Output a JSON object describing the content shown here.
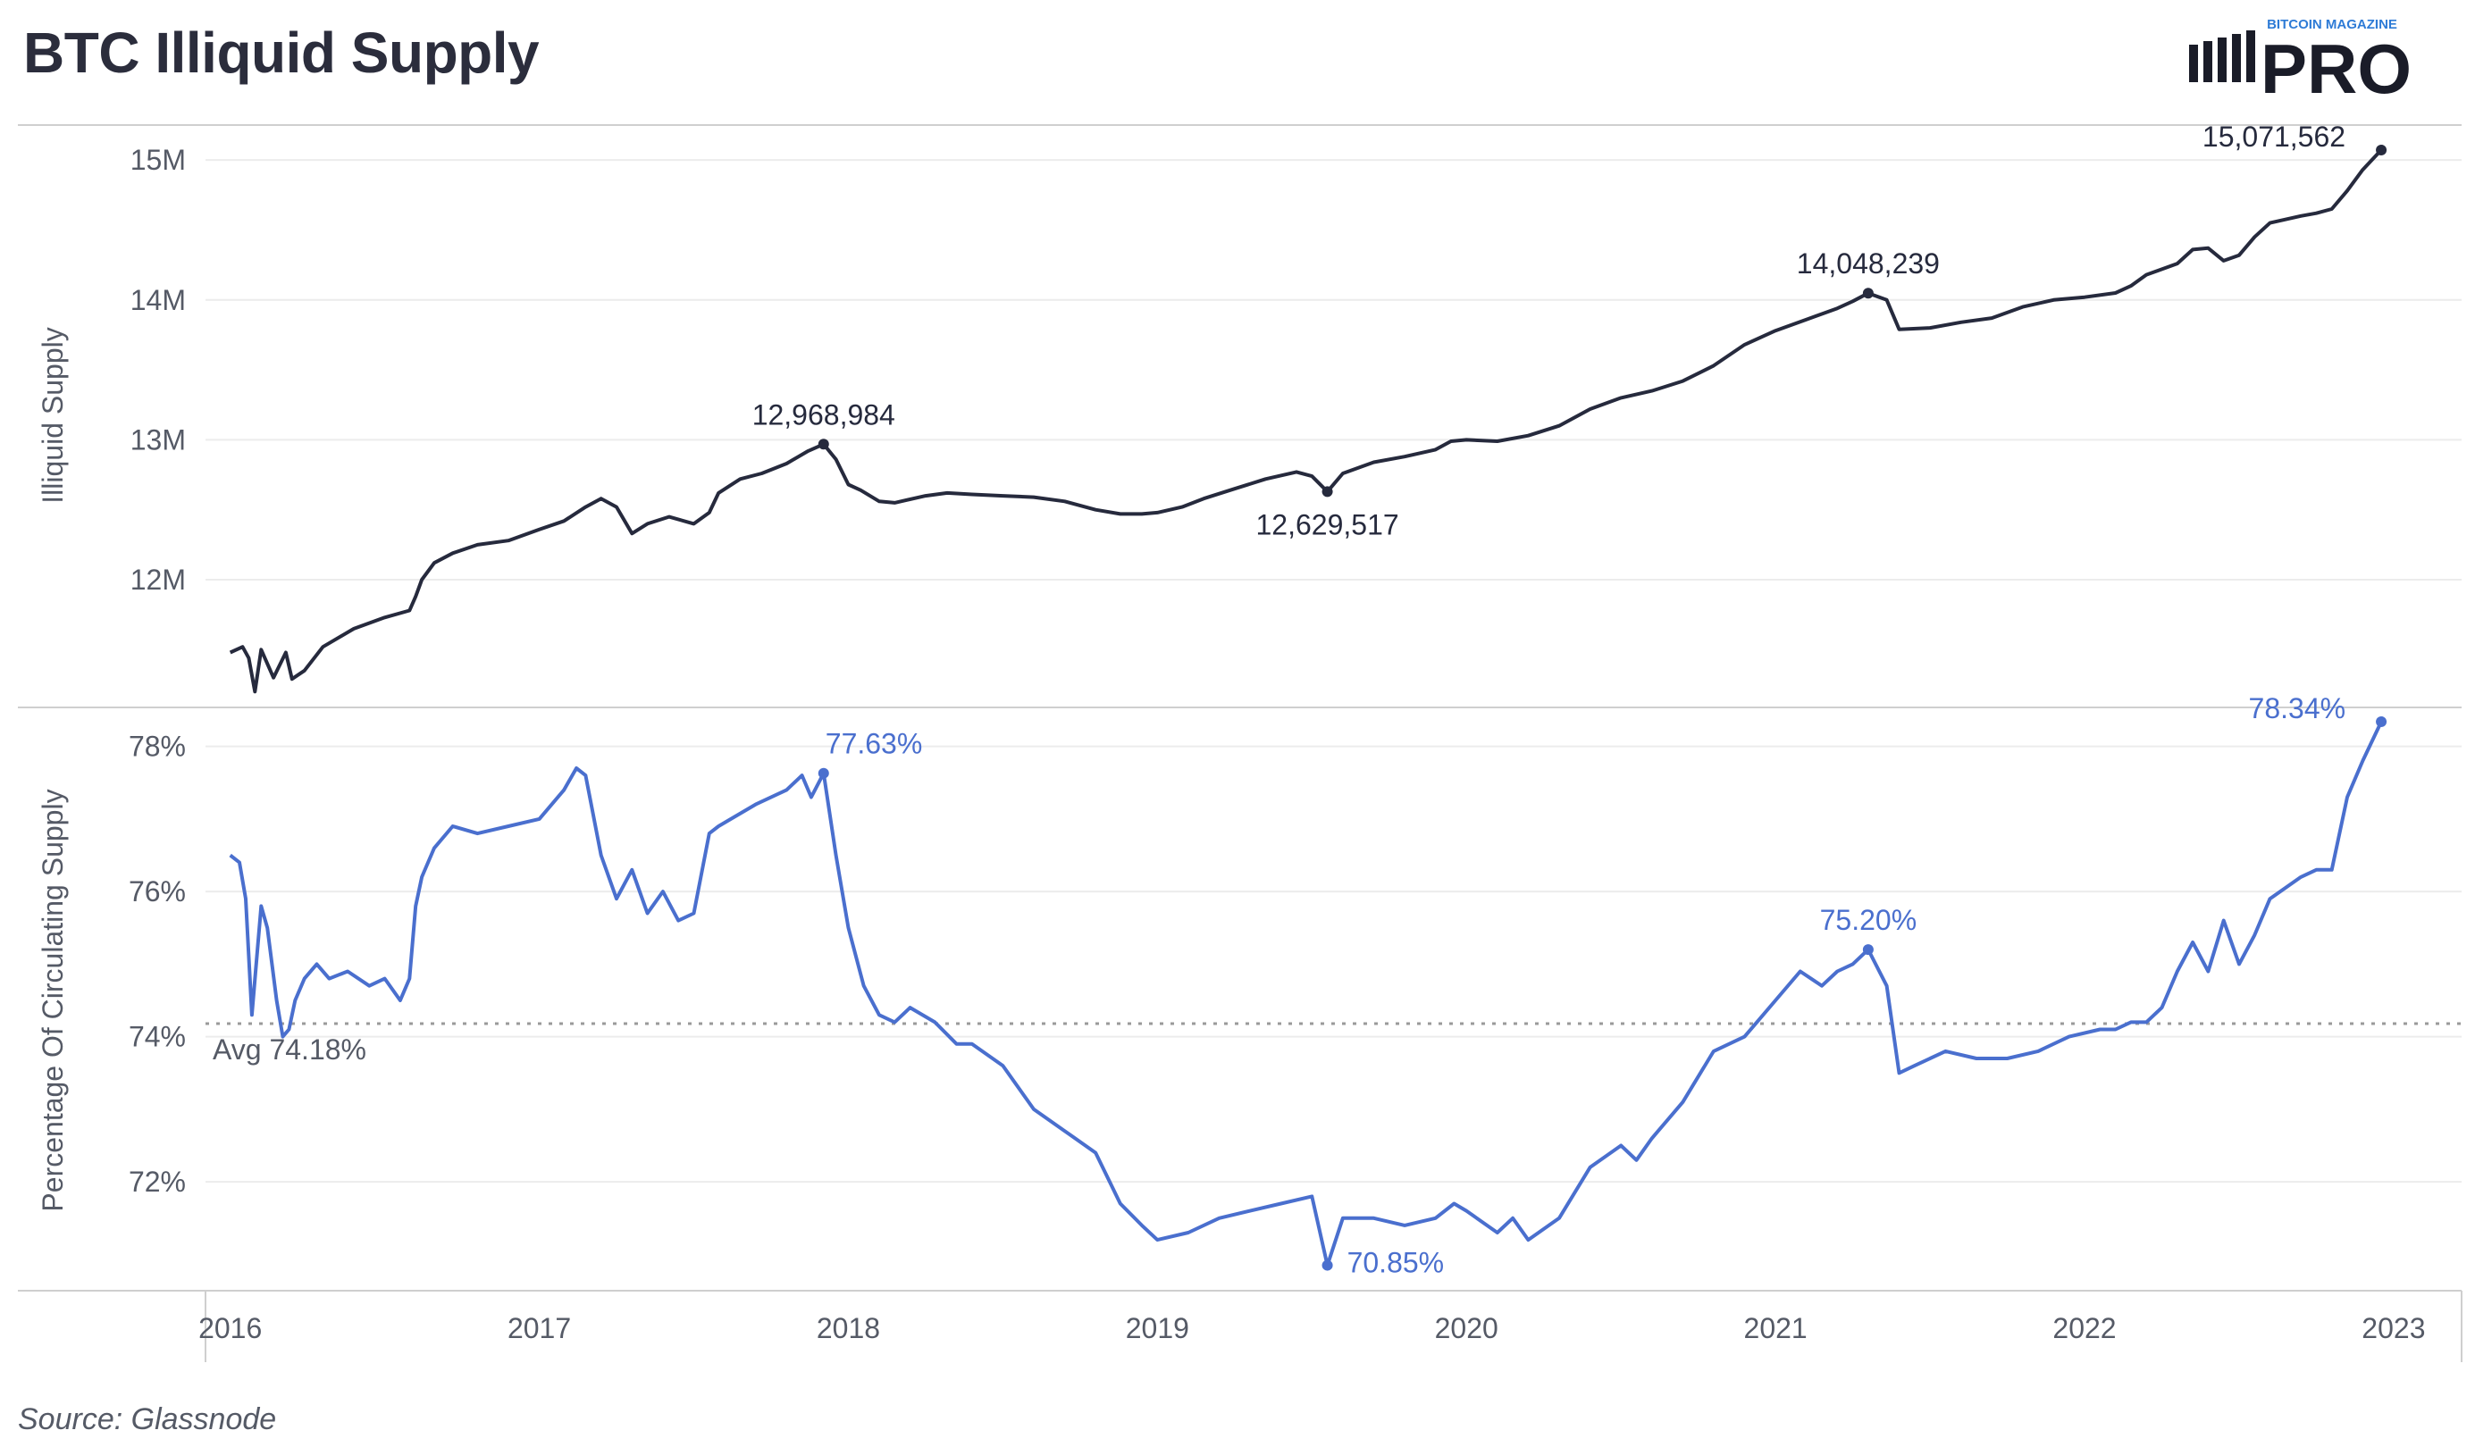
{
  "title": "BTC Illiquid Supply",
  "source": "Source: Glassnode",
  "logo": {
    "small_text": "BITCOIN MAGAZINE",
    "big_text": "PRO"
  },
  "colors": {
    "supply_line": "#262a3d",
    "pct_line": "#4a6fce",
    "grid": "#ececec",
    "avg_line": "#9a9a9a"
  },
  "chart_data": [
    {
      "type": "line",
      "ylabel": "Illiquid Supply",
      "ylim": [
        11100000,
        15250000
      ],
      "yticks": [
        12000000,
        13000000,
        14000000,
        15000000
      ],
      "ytick_labels": [
        "12M",
        "13M",
        "14M",
        "15M"
      ],
      "xlim": [
        2015.92,
        2023.22
      ],
      "xticks": [
        2016,
        2017,
        2018,
        2019,
        2020,
        2021,
        2022,
        2023
      ],
      "xtick_labels": [
        "2016",
        "2017",
        "2018",
        "2019",
        "2020",
        "2021",
        "2022",
        "2023"
      ],
      "grid": true,
      "series": [
        {
          "x": [
            2016.0,
            2016.04,
            2016.06,
            2016.08,
            2016.1,
            2016.14,
            2016.18,
            2016.2,
            2016.24,
            2016.3,
            2016.4,
            2016.5,
            2016.58,
            2016.6,
            2016.62,
            2016.66,
            2016.72,
            2016.8,
            2016.9,
            2017.0,
            2017.08,
            2017.15,
            2017.2,
            2017.25,
            2017.3,
            2017.35,
            2017.42,
            2017.5,
            2017.55,
            2017.58,
            2017.65,
            2017.72,
            2017.8,
            2017.87,
            2017.92,
            2017.96,
            2018.0,
            2018.04,
            2018.1,
            2018.15,
            2018.25,
            2018.32,
            2018.4,
            2018.5,
            2018.6,
            2018.7,
            2018.8,
            2018.88,
            2018.95,
            2019.0,
            2019.08,
            2019.15,
            2019.25,
            2019.35,
            2019.45,
            2019.5,
            2019.55,
            2019.6,
            2019.65,
            2019.7,
            2019.8,
            2019.9,
            2019.95,
            2020.0,
            2020.1,
            2020.2,
            2020.3,
            2020.4,
            2020.5,
            2020.6,
            2020.7,
            2020.8,
            2020.9,
            2021.0,
            2021.1,
            2021.2,
            2021.25,
            2021.3,
            2021.36,
            2021.4,
            2021.5,
            2021.6,
            2021.7,
            2021.8,
            2021.9,
            2022.0,
            2022.1,
            2022.15,
            2022.2,
            2022.3,
            2022.35,
            2022.4,
            2022.45,
            2022.5,
            2022.55,
            2022.6,
            2022.7,
            2022.75,
            2022.8,
            2022.85,
            2022.9,
            2022.96
          ],
          "y": [
            11480000,
            11520000,
            11440000,
            11200000,
            11500000,
            11300000,
            11480000,
            11290000,
            11350000,
            11520000,
            11650000,
            11730000,
            11780000,
            11880000,
            12000000,
            12120000,
            12190000,
            12250000,
            12280000,
            12360000,
            12420000,
            12520000,
            12580000,
            12520000,
            12330000,
            12400000,
            12450000,
            12400000,
            12480000,
            12620000,
            12720000,
            12760000,
            12830000,
            12920000,
            12968984,
            12860000,
            12680000,
            12640000,
            12560000,
            12550000,
            12600000,
            12620000,
            12610000,
            12600000,
            12590000,
            12560000,
            12500000,
            12470000,
            12470000,
            12480000,
            12520000,
            12580000,
            12650000,
            12720000,
            12770000,
            12740000,
            12629517,
            12760000,
            12800000,
            12840000,
            12880000,
            12930000,
            12990000,
            13000000,
            12990000,
            13030000,
            13100000,
            13220000,
            13300000,
            13350000,
            13420000,
            13530000,
            13680000,
            13780000,
            13860000,
            13940000,
            13990000,
            14048239,
            14000000,
            13790000,
            13800000,
            13840000,
            13870000,
            13950000,
            14000000,
            14020000,
            14050000,
            14100000,
            14180000,
            14260000,
            14360000,
            14370000,
            14280000,
            14320000,
            14450000,
            14550000,
            14600000,
            14620000,
            14650000,
            14780000,
            14930000,
            15071562
          ]
        }
      ],
      "annotations": [
        {
          "label": "12,968,984",
          "x": 2017.92,
          "y": 12968984
        },
        {
          "label": "12,629,517",
          "x": 2019.55,
          "y": 12629517
        },
        {
          "label": "14,048,239",
          "x": 2021.3,
          "y": 14048239
        },
        {
          "label": "15,071,562",
          "x": 2022.96,
          "y": 15071562
        }
      ]
    },
    {
      "type": "line",
      "ylabel": "Percentage Of Circulating Supply",
      "ylim": [
        70.5,
        78.5
      ],
      "yticks": [
        72,
        74,
        76,
        78
      ],
      "ytick_labels": [
        "72%",
        "74%",
        "76%",
        "78%"
      ],
      "xlim": [
        2015.92,
        2023.22
      ],
      "grid": true,
      "average": {
        "value": 74.18,
        "label": "Avg 74.18%"
      },
      "series": [
        {
          "x": [
            2016.0,
            2016.03,
            2016.05,
            2016.07,
            2016.1,
            2016.12,
            2016.15,
            2016.17,
            2016.19,
            2016.21,
            2016.24,
            2016.28,
            2016.32,
            2016.38,
            2016.45,
            2016.5,
            2016.55,
            2016.58,
            2016.6,
            2016.62,
            2016.66,
            2016.72,
            2016.8,
            2016.9,
            2017.0,
            2017.08,
            2017.12,
            2017.15,
            2017.2,
            2017.25,
            2017.3,
            2017.35,
            2017.4,
            2017.45,
            2017.5,
            2017.55,
            2017.58,
            2017.62,
            2017.7,
            2017.8,
            2017.85,
            2017.88,
            2017.92,
            2017.96,
            2018.0,
            2018.05,
            2018.1,
            2018.15,
            2018.2,
            2018.28,
            2018.35,
            2018.4,
            2018.5,
            2018.6,
            2018.7,
            2018.8,
            2018.88,
            2018.95,
            2019.0,
            2019.1,
            2019.2,
            2019.3,
            2019.4,
            2019.5,
            2019.55,
            2019.6,
            2019.7,
            2019.8,
            2019.9,
            2019.96,
            2020.0,
            2020.1,
            2020.15,
            2020.2,
            2020.3,
            2020.4,
            2020.5,
            2020.55,
            2020.6,
            2020.7,
            2020.8,
            2020.9,
            2021.0,
            2021.08,
            2021.15,
            2021.2,
            2021.25,
            2021.3,
            2021.36,
            2021.4,
            2021.45,
            2021.55,
            2021.65,
            2021.75,
            2021.85,
            2021.95,
            2022.05,
            2022.1,
            2022.15,
            2022.2,
            2022.25,
            2022.3,
            2022.35,
            2022.4,
            2022.45,
            2022.5,
            2022.55,
            2022.6,
            2022.7,
            2022.75,
            2022.8,
            2022.85,
            2022.9,
            2022.96
          ],
          "y": [
            76.5,
            76.4,
            75.9,
            74.3,
            75.8,
            75.5,
            74.5,
            74.0,
            74.1,
            74.5,
            74.8,
            75.0,
            74.8,
            74.9,
            74.7,
            74.8,
            74.5,
            74.8,
            75.8,
            76.2,
            76.6,
            76.9,
            76.8,
            76.9,
            77.0,
            77.4,
            77.7,
            77.6,
            76.5,
            75.9,
            76.3,
            75.7,
            76.0,
            75.6,
            75.7,
            76.8,
            76.9,
            77.0,
            77.2,
            77.4,
            77.6,
            77.3,
            77.63,
            76.5,
            75.5,
            74.7,
            74.3,
            74.2,
            74.4,
            74.2,
            73.9,
            73.9,
            73.6,
            73.0,
            72.7,
            72.4,
            71.7,
            71.4,
            71.2,
            71.3,
            71.5,
            71.6,
            71.7,
            71.8,
            70.85,
            71.5,
            71.5,
            71.4,
            71.5,
            71.7,
            71.6,
            71.3,
            71.5,
            71.2,
            71.5,
            72.2,
            72.5,
            72.3,
            72.6,
            73.1,
            73.8,
            74.0,
            74.5,
            74.9,
            74.7,
            74.9,
            75.0,
            75.2,
            74.7,
            73.5,
            73.6,
            73.8,
            73.7,
            73.7,
            73.8,
            74.0,
            74.1,
            74.1,
            74.2,
            74.2,
            74.4,
            74.9,
            75.3,
            74.9,
            75.6,
            75.0,
            75.4,
            75.9,
            76.2,
            76.3,
            76.3,
            77.3,
            77.8,
            78.34
          ]
        }
      ],
      "annotations": [
        {
          "label": "77.63%",
          "x": 2017.92,
          "y": 77.63
        },
        {
          "label": "70.85%",
          "x": 2019.55,
          "y": 70.85
        },
        {
          "label": "75.20%",
          "x": 2021.3,
          "y": 75.2
        },
        {
          "label": "78.34%",
          "x": 2022.96,
          "y": 78.34
        }
      ]
    }
  ]
}
